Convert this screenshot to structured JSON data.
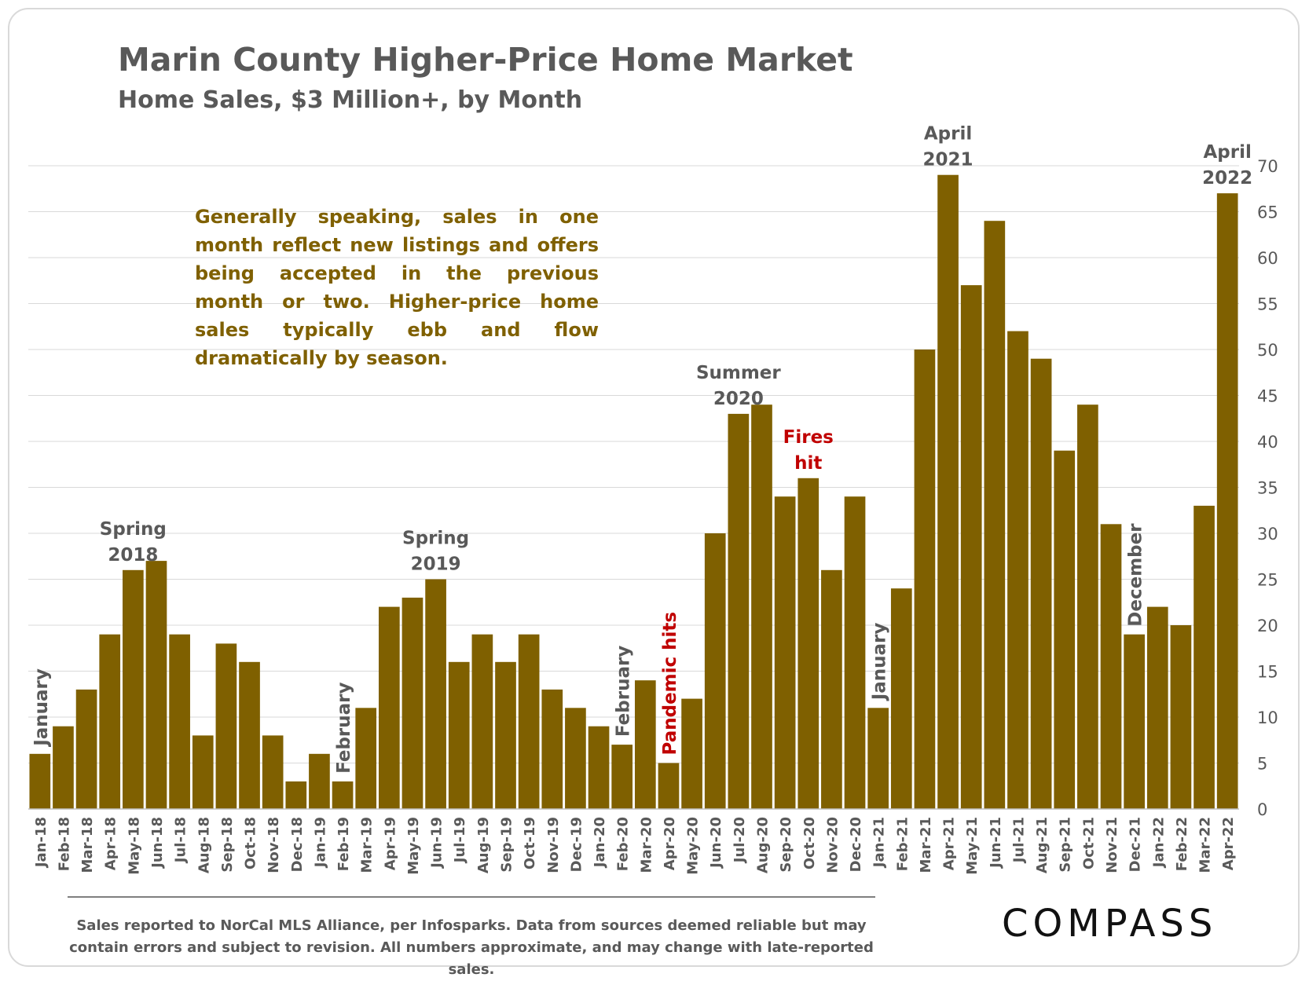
{
  "header": {
    "title": "Marin County Higher-Price Home Market",
    "subtitle": "Home Sales, $3 Million+, by Month"
  },
  "note": "Generally speaking, sales in one month reflect new listings and offers being accepted in the previous month or two. Higher-price home sales typically ebb and flow dramatically by season.",
  "footer": {
    "source": "Sales reported to NorCal MLS Alliance, per Infosparks. Data from sources deemed reliable but may contain errors and subject to revision. All numbers approximate, and may change with late-reported sales.",
    "logo": "COMPASS"
  },
  "colors": {
    "bar": "#7f6000",
    "annotation": "#595959",
    "highlight": "#c00000",
    "grid": "#d9d9d9"
  },
  "chart_data": {
    "type": "bar",
    "categories": [
      "Jan-18",
      "Feb-18",
      "Mar-18",
      "Apr-18",
      "May-18",
      "Jun-18",
      "Jul-18",
      "Aug-18",
      "Sep-18",
      "Oct-18",
      "Nov-18",
      "Dec-18",
      "Jan-19",
      "Feb-19",
      "Mar-19",
      "Apr-19",
      "May-19",
      "Jun-19",
      "Jul-19",
      "Aug-19",
      "Sep-19",
      "Oct-19",
      "Nov-19",
      "Dec-19",
      "Jan-20",
      "Feb-20",
      "Mar-20",
      "Apr-20",
      "May-20",
      "Jun-20",
      "Jul-20",
      "Aug-20",
      "Sep-20",
      "Oct-20",
      "Nov-20",
      "Dec-20",
      "Jan-21",
      "Feb-21",
      "Mar-21",
      "Apr-21",
      "May-21",
      "Jun-21",
      "Jul-21",
      "Aug-21",
      "Sep-21",
      "Oct-21",
      "Nov-21",
      "Dec-21",
      "Jan-22",
      "Feb-22",
      "Mar-22",
      "Apr-22"
    ],
    "values": [
      6,
      9,
      13,
      19,
      26,
      27,
      19,
      8,
      18,
      16,
      8,
      3,
      6,
      3,
      11,
      22,
      23,
      25,
      16,
      19,
      16,
      19,
      13,
      11,
      9,
      7,
      14,
      5,
      12,
      30,
      43,
      44,
      34,
      36,
      26,
      34,
      11,
      24,
      50,
      69,
      57,
      64,
      52,
      49,
      39,
      44,
      31,
      19,
      22,
      20,
      33,
      67
    ],
    "ylim": [
      0,
      70
    ],
    "yticks": [
      0,
      5,
      10,
      15,
      20,
      25,
      30,
      35,
      40,
      45,
      50,
      55,
      60,
      65,
      70
    ],
    "yaxis_side": "right",
    "grid": true,
    "annotations": [
      {
        "text": "January",
        "at": "Jan-18",
        "style": "vertical",
        "color": "annotation"
      },
      {
        "text": "Spring\n2018",
        "at": "May-18",
        "style": "horizontal",
        "color": "annotation"
      },
      {
        "text": "February",
        "at": "Feb-19",
        "style": "vertical",
        "color": "annotation"
      },
      {
        "text": "Spring\n2019",
        "at": "Jun-19",
        "style": "horizontal",
        "color": "annotation"
      },
      {
        "text": "February",
        "at": "Feb-20",
        "style": "vertical",
        "color": "annotation"
      },
      {
        "text": "Pandemic hits",
        "at": "Apr-20",
        "style": "vertical",
        "color": "highlight"
      },
      {
        "text": "Summer\n2020",
        "at": "Jul-20",
        "style": "horizontal",
        "color": "annotation"
      },
      {
        "text": "Fires\nhit",
        "at": "Oct-20",
        "style": "horizontal",
        "color": "highlight"
      },
      {
        "text": "January",
        "at": "Jan-21",
        "style": "vertical",
        "color": "annotation"
      },
      {
        "text": "April\n2021",
        "at": "Apr-21",
        "style": "horizontal",
        "color": "annotation"
      },
      {
        "text": "December",
        "at": "Dec-21",
        "style": "vertical",
        "color": "annotation"
      },
      {
        "text": "April\n2022",
        "at": "Apr-22",
        "style": "horizontal",
        "color": "annotation"
      }
    ]
  }
}
